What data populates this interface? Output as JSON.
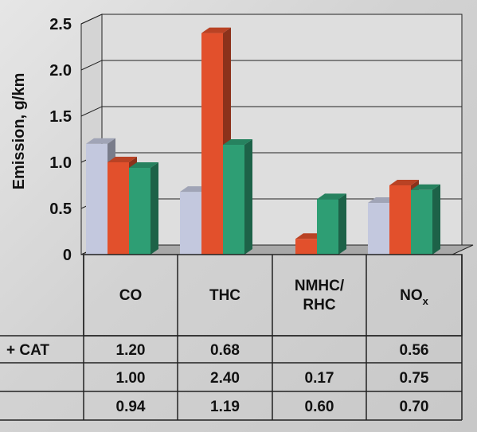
{
  "chart_data": {
    "type": "bar",
    "ylabel": "Emission, g/km",
    "ylim": [
      0,
      2.5
    ],
    "yticks": [
      "0",
      "0.5",
      "1.0",
      "1.5",
      "2.0",
      "2.5"
    ],
    "categories": [
      "CO",
      "THC",
      "NMHC/\nRHC",
      "NOx"
    ],
    "category_labels": [
      {
        "lines": [
          "CO"
        ]
      },
      {
        "lines": [
          "THC"
        ]
      },
      {
        "lines": [
          "NMHC/",
          "RHC"
        ]
      },
      {
        "lines": [
          "NO"
        ],
        "sub": "x"
      }
    ],
    "series": [
      {
        "name": "+ CAT",
        "color": "#c3c8de",
        "values": [
          1.2,
          0.68,
          null,
          0.56
        ],
        "labels": [
          "1.20",
          "0.68",
          "",
          "0.56"
        ]
      },
      {
        "name": "",
        "color": "#e2502c",
        "values": [
          1.0,
          2.4,
          0.17,
          0.75
        ],
        "labels": [
          "1.00",
          "2.40",
          "0.17",
          "0.75"
        ]
      },
      {
        "name": "",
        "color": "#2e9e74",
        "values": [
          0.94,
          1.19,
          0.6,
          0.7
        ],
        "labels": [
          "0.94",
          "1.19",
          "0.60",
          "0.70"
        ]
      }
    ],
    "grid": true
  }
}
